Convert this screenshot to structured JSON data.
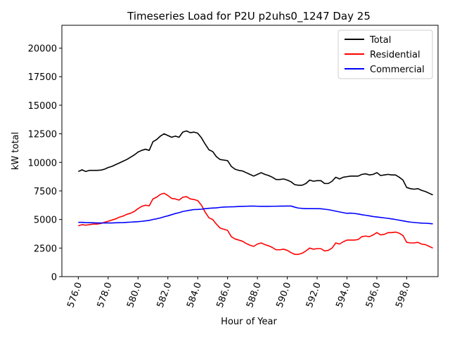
{
  "chart_data": {
    "type": "line",
    "title": "Timeseries Load for P2U p2uhs0_1247  Day 25",
    "xlabel": "Hour of Year",
    "ylabel": "kW total",
    "xlim": [
      574.9,
      600.1
    ],
    "ylim": [
      0,
      22000
    ],
    "xticks": [
      576,
      578,
      580,
      582,
      584,
      586,
      588,
      590,
      592,
      594,
      596,
      598
    ],
    "xtick_labels": [
      "576.0",
      "578.0",
      "580.0",
      "582.0",
      "584.0",
      "586.0",
      "588.0",
      "590.0",
      "592.0",
      "594.0",
      "596.0",
      "598.0"
    ],
    "yticks": [
      0,
      2500,
      5000,
      7500,
      10000,
      12500,
      15000,
      17500,
      20000
    ],
    "ytick_labels": [
      "0",
      "2500",
      "5000",
      "7500",
      "10000",
      "12500",
      "15000",
      "17500",
      "20000"
    ],
    "grid": false,
    "legend_position": "top-right",
    "x": [
      576.0,
      576.25,
      576.5,
      576.75,
      577.0,
      577.25,
      577.5,
      577.75,
      578.0,
      578.25,
      578.5,
      578.75,
      579.0,
      579.25,
      579.5,
      579.75,
      580.0,
      580.25,
      580.5,
      580.75,
      581.0,
      581.25,
      581.5,
      581.75,
      582.0,
      582.25,
      582.5,
      582.75,
      583.0,
      583.25,
      583.5,
      583.75,
      584.0,
      584.25,
      584.5,
      584.75,
      585.0,
      585.25,
      585.5,
      585.75,
      586.0,
      586.25,
      586.5,
      586.75,
      587.0,
      587.25,
      587.5,
      587.75,
      588.0,
      588.25,
      588.5,
      588.75,
      589.0,
      589.25,
      589.5,
      589.75,
      590.0,
      590.25,
      590.5,
      590.75,
      591.0,
      591.25,
      591.5,
      591.75,
      592.0,
      592.25,
      592.5,
      592.75,
      593.0,
      593.25,
      593.5,
      593.75,
      594.0,
      594.25,
      594.5,
      594.75,
      595.0,
      595.25,
      595.5,
      595.75,
      596.0,
      596.25,
      596.5,
      596.75,
      597.0,
      597.25,
      597.5,
      597.75,
      598.0,
      598.25,
      598.5,
      598.75,
      599.0,
      599.25,
      599.5,
      599.75
    ],
    "series": [
      {
        "name": "Total",
        "color": "#000000",
        "values": [
          9200,
          9350,
          9200,
          9300,
          9300,
          9300,
          9320,
          9400,
          9550,
          9650,
          9800,
          9950,
          10100,
          10250,
          10450,
          10650,
          10900,
          11050,
          11150,
          11050,
          11800,
          12000,
          12300,
          12500,
          12350,
          12200,
          12300,
          12200,
          12650,
          12750,
          12600,
          12650,
          12550,
          12150,
          11600,
          11100,
          10950,
          10500,
          10250,
          10200,
          10150,
          9650,
          9400,
          9300,
          9250,
          9100,
          8950,
          8800,
          8950,
          9100,
          8950,
          8850,
          8700,
          8500,
          8500,
          8550,
          8450,
          8300,
          8050,
          8000,
          8000,
          8150,
          8450,
          8350,
          8400,
          8400,
          8150,
          8150,
          8350,
          8700,
          8550,
          8700,
          8750,
          8800,
          8800,
          8800,
          8950,
          9000,
          8900,
          8950,
          9100,
          8850,
          8900,
          8950,
          8900,
          8900,
          8700,
          8450,
          7800,
          7700,
          7650,
          7700,
          7550,
          7450,
          7300,
          7150
        ]
      },
      {
        "name": "Residential",
        "color": "#ff0000",
        "values": [
          4450,
          4550,
          4500,
          4550,
          4600,
          4600,
          4650,
          4750,
          4850,
          4950,
          5050,
          5200,
          5300,
          5450,
          5550,
          5700,
          5950,
          6150,
          6250,
          6200,
          6800,
          6950,
          7200,
          7300,
          7100,
          6850,
          6800,
          6700,
          6950,
          7000,
          6800,
          6750,
          6650,
          6250,
          5650,
          5150,
          5000,
          4600,
          4250,
          4150,
          4050,
          3500,
          3300,
          3200,
          3100,
          2900,
          2750,
          2650,
          2850,
          2950,
          2800,
          2700,
          2550,
          2350,
          2350,
          2400,
          2300,
          2100,
          1950,
          1950,
          2050,
          2250,
          2500,
          2400,
          2450,
          2450,
          2250,
          2300,
          2500,
          2950,
          2850,
          3050,
          3200,
          3200,
          3200,
          3250,
          3500,
          3550,
          3500,
          3650,
          3850,
          3650,
          3700,
          3850,
          3850,
          3900,
          3800,
          3600,
          3000,
          2950,
          2950,
          3000,
          2850,
          2800,
          2650,
          2500
        ]
      },
      {
        "name": "Commercial",
        "color": "#0000ff",
        "values": [
          4750,
          4750,
          4730,
          4720,
          4710,
          4700,
          4700,
          4700,
          4700,
          4700,
          4710,
          4720,
          4730,
          4750,
          4770,
          4790,
          4810,
          4840,
          4880,
          4920,
          5000,
          5060,
          5140,
          5240,
          5320,
          5420,
          5520,
          5600,
          5700,
          5760,
          5820,
          5870,
          5880,
          5900,
          5950,
          5980,
          6000,
          6020,
          6060,
          6090,
          6100,
          6110,
          6120,
          6140,
          6150,
          6160,
          6170,
          6170,
          6160,
          6150,
          6150,
          6150,
          6160,
          6160,
          6170,
          6170,
          6180,
          6180,
          6080,
          6000,
          5970,
          5950,
          5950,
          5950,
          5950,
          5940,
          5900,
          5860,
          5800,
          5730,
          5660,
          5600,
          5540,
          5560,
          5530,
          5480,
          5420,
          5370,
          5320,
          5260,
          5220,
          5180,
          5140,
          5100,
          5050,
          5000,
          4940,
          4880,
          4820,
          4770,
          4740,
          4710,
          4680,
          4670,
          4650,
          4620
        ]
      }
    ]
  }
}
